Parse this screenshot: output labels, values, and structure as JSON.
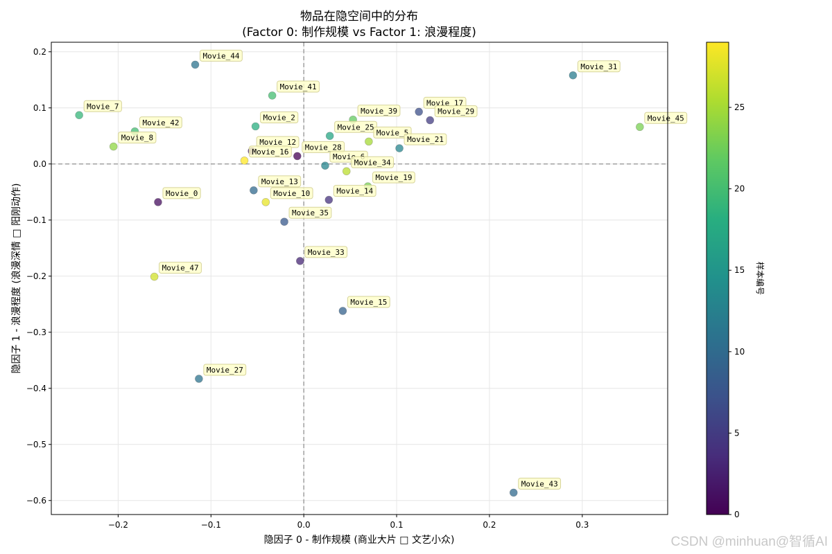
{
  "chart_data": {
    "type": "scatter",
    "title": "物品在隐空间中的分布",
    "subtitle": "(Factor 0: 制作规模 vs Factor 1: 浪漫程度)",
    "xlabel": "隐因子 0 - 制作规模 (商业大片 □ 文艺小众)",
    "ylabel": "隐因子 1 - 浪漫程度 (浪漫深情 □ 阳刚动作)",
    "xlim": [
      -0.272,
      0.392
    ],
    "ylim": [
      -0.625,
      0.217
    ],
    "xticks": [
      -0.2,
      -0.1,
      0.0,
      0.1,
      0.2,
      0.3
    ],
    "yticks": [
      0.2,
      0.1,
      0.0,
      -0.1,
      -0.2,
      -0.3,
      -0.4,
      -0.5,
      -0.6
    ],
    "grid": true,
    "reference_lines": {
      "x": 0.0,
      "y": 0.0
    },
    "colorbar": {
      "label": "样本编号",
      "range": [
        0,
        29
      ],
      "ticks": [
        0,
        5,
        10,
        15,
        20,
        25
      ],
      "colormap": "viridis"
    },
    "points": [
      {
        "label": "Movie_44",
        "x": -0.117,
        "y": 0.177,
        "c": 11
      },
      {
        "label": "Movie_31",
        "x": 0.29,
        "y": 0.158,
        "c": 12
      },
      {
        "label": "Movie_41",
        "x": -0.034,
        "y": 0.122,
        "c": 20
      },
      {
        "label": "Movie_7",
        "x": -0.242,
        "y": 0.087,
        "c": 19
      },
      {
        "label": "Movie_17",
        "x": 0.124,
        "y": 0.093,
        "c": 7
      },
      {
        "label": "Movie_29",
        "x": 0.136,
        "y": 0.078,
        "c": 5
      },
      {
        "label": "Movie_39",
        "x": 0.053,
        "y": 0.079,
        "c": 22
      },
      {
        "label": "Movie_45",
        "x": 0.362,
        "y": 0.066,
        "c": 23
      },
      {
        "label": "Movie_2",
        "x": -0.052,
        "y": 0.067,
        "c": 18
      },
      {
        "label": "Movie_42",
        "x": -0.182,
        "y": 0.058,
        "c": 20
      },
      {
        "label": "Movie_25",
        "x": 0.028,
        "y": 0.05,
        "c": 17
      },
      {
        "label": "Movie_5",
        "x": 0.07,
        "y": 0.04,
        "c": 25
      },
      {
        "label": "Movie_8",
        "x": -0.205,
        "y": 0.031,
        "c": 24
      },
      {
        "label": "Movie_21",
        "x": 0.103,
        "y": 0.028,
        "c": 13
      },
      {
        "label": "Movie_12",
        "x": -0.056,
        "y": 0.023,
        "c": 2
      },
      {
        "label": "Movie_28",
        "x": -0.007,
        "y": 0.014,
        "c": 0
      },
      {
        "label": "Movie_16",
        "x": -0.064,
        "y": 0.006,
        "c": 29
      },
      {
        "label": "Movie_6",
        "x": 0.023,
        "y": -0.003,
        "c": 13
      },
      {
        "label": "Movie_34",
        "x": 0.046,
        "y": -0.013,
        "c": 26
      },
      {
        "label": "Movie_19",
        "x": 0.069,
        "y": -0.04,
        "c": 23
      },
      {
        "label": "Movie_13",
        "x": -0.054,
        "y": -0.047,
        "c": 10
      },
      {
        "label": "Movie_14",
        "x": 0.027,
        "y": -0.064,
        "c": 4
      },
      {
        "label": "Movie_0",
        "x": -0.157,
        "y": -0.068,
        "c": 1
      },
      {
        "label": "Movie_10",
        "x": -0.041,
        "y": -0.068,
        "c": 28
      },
      {
        "label": "Movie_35",
        "x": -0.021,
        "y": -0.103,
        "c": 8
      },
      {
        "label": "Movie_33",
        "x": -0.004,
        "y": -0.173,
        "c": 3
      },
      {
        "label": "Movie_47",
        "x": -0.161,
        "y": -0.201,
        "c": 27
      },
      {
        "label": "Movie_15",
        "x": 0.042,
        "y": -0.262,
        "c": 9
      },
      {
        "label": "Movie_27",
        "x": -0.113,
        "y": -0.383,
        "c": 11
      },
      {
        "label": "Movie_43",
        "x": 0.226,
        "y": -0.586,
        "c": 10
      }
    ]
  },
  "watermark": "CSDN @minhuan@智循AI"
}
